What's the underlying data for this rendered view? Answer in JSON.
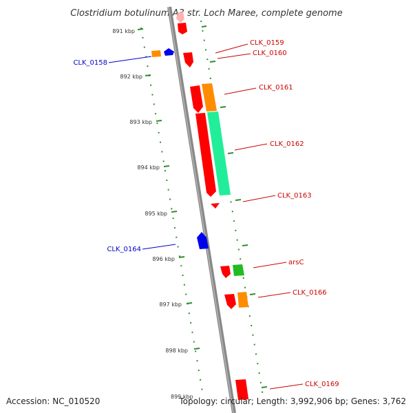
{
  "header": {
    "title": "Clostridium botulinum A3 str. Loch Maree, complete genome"
  },
  "footer": {
    "accession": "Accession: NC_010520",
    "topology": "Topology: circular; Length: 3,992,906 bp; Genes: 3,762"
  },
  "colors": {
    "backbone": "#888888",
    "dots": "#2e8b2e",
    "forward_cds": "#ff0000",
    "reverse_cds": "#0000ee",
    "orange_feature": "#ff8c00",
    "teal_feature": "#22ee99",
    "green_feature": "#22bb22",
    "forward_label": "#cc0000",
    "reverse_label": "#0000cc"
  },
  "scale": {
    "ticks": [
      "891 kbp",
      "892 kbp",
      "893 kbp",
      "894 kbp",
      "895 kbp",
      "896 kbp",
      "897 kbp",
      "898 kbp",
      "899 kbp"
    ]
  },
  "genes": [
    {
      "label": "CLK_0158",
      "strand": "reverse"
    },
    {
      "label": "CLK_0159",
      "strand": "forward"
    },
    {
      "label": "CLK_0160",
      "strand": "forward"
    },
    {
      "label": "CLK_0161",
      "strand": "forward"
    },
    {
      "label": "CLK_0162",
      "strand": "forward"
    },
    {
      "label": "CLK_0163",
      "strand": "forward"
    },
    {
      "label": "CLK_0164",
      "strand": "reverse"
    },
    {
      "label": "arsC",
      "strand": "forward"
    },
    {
      "label": "CLK_0166",
      "strand": "forward"
    },
    {
      "label": "CLK_0169",
      "strand": "forward"
    }
  ]
}
